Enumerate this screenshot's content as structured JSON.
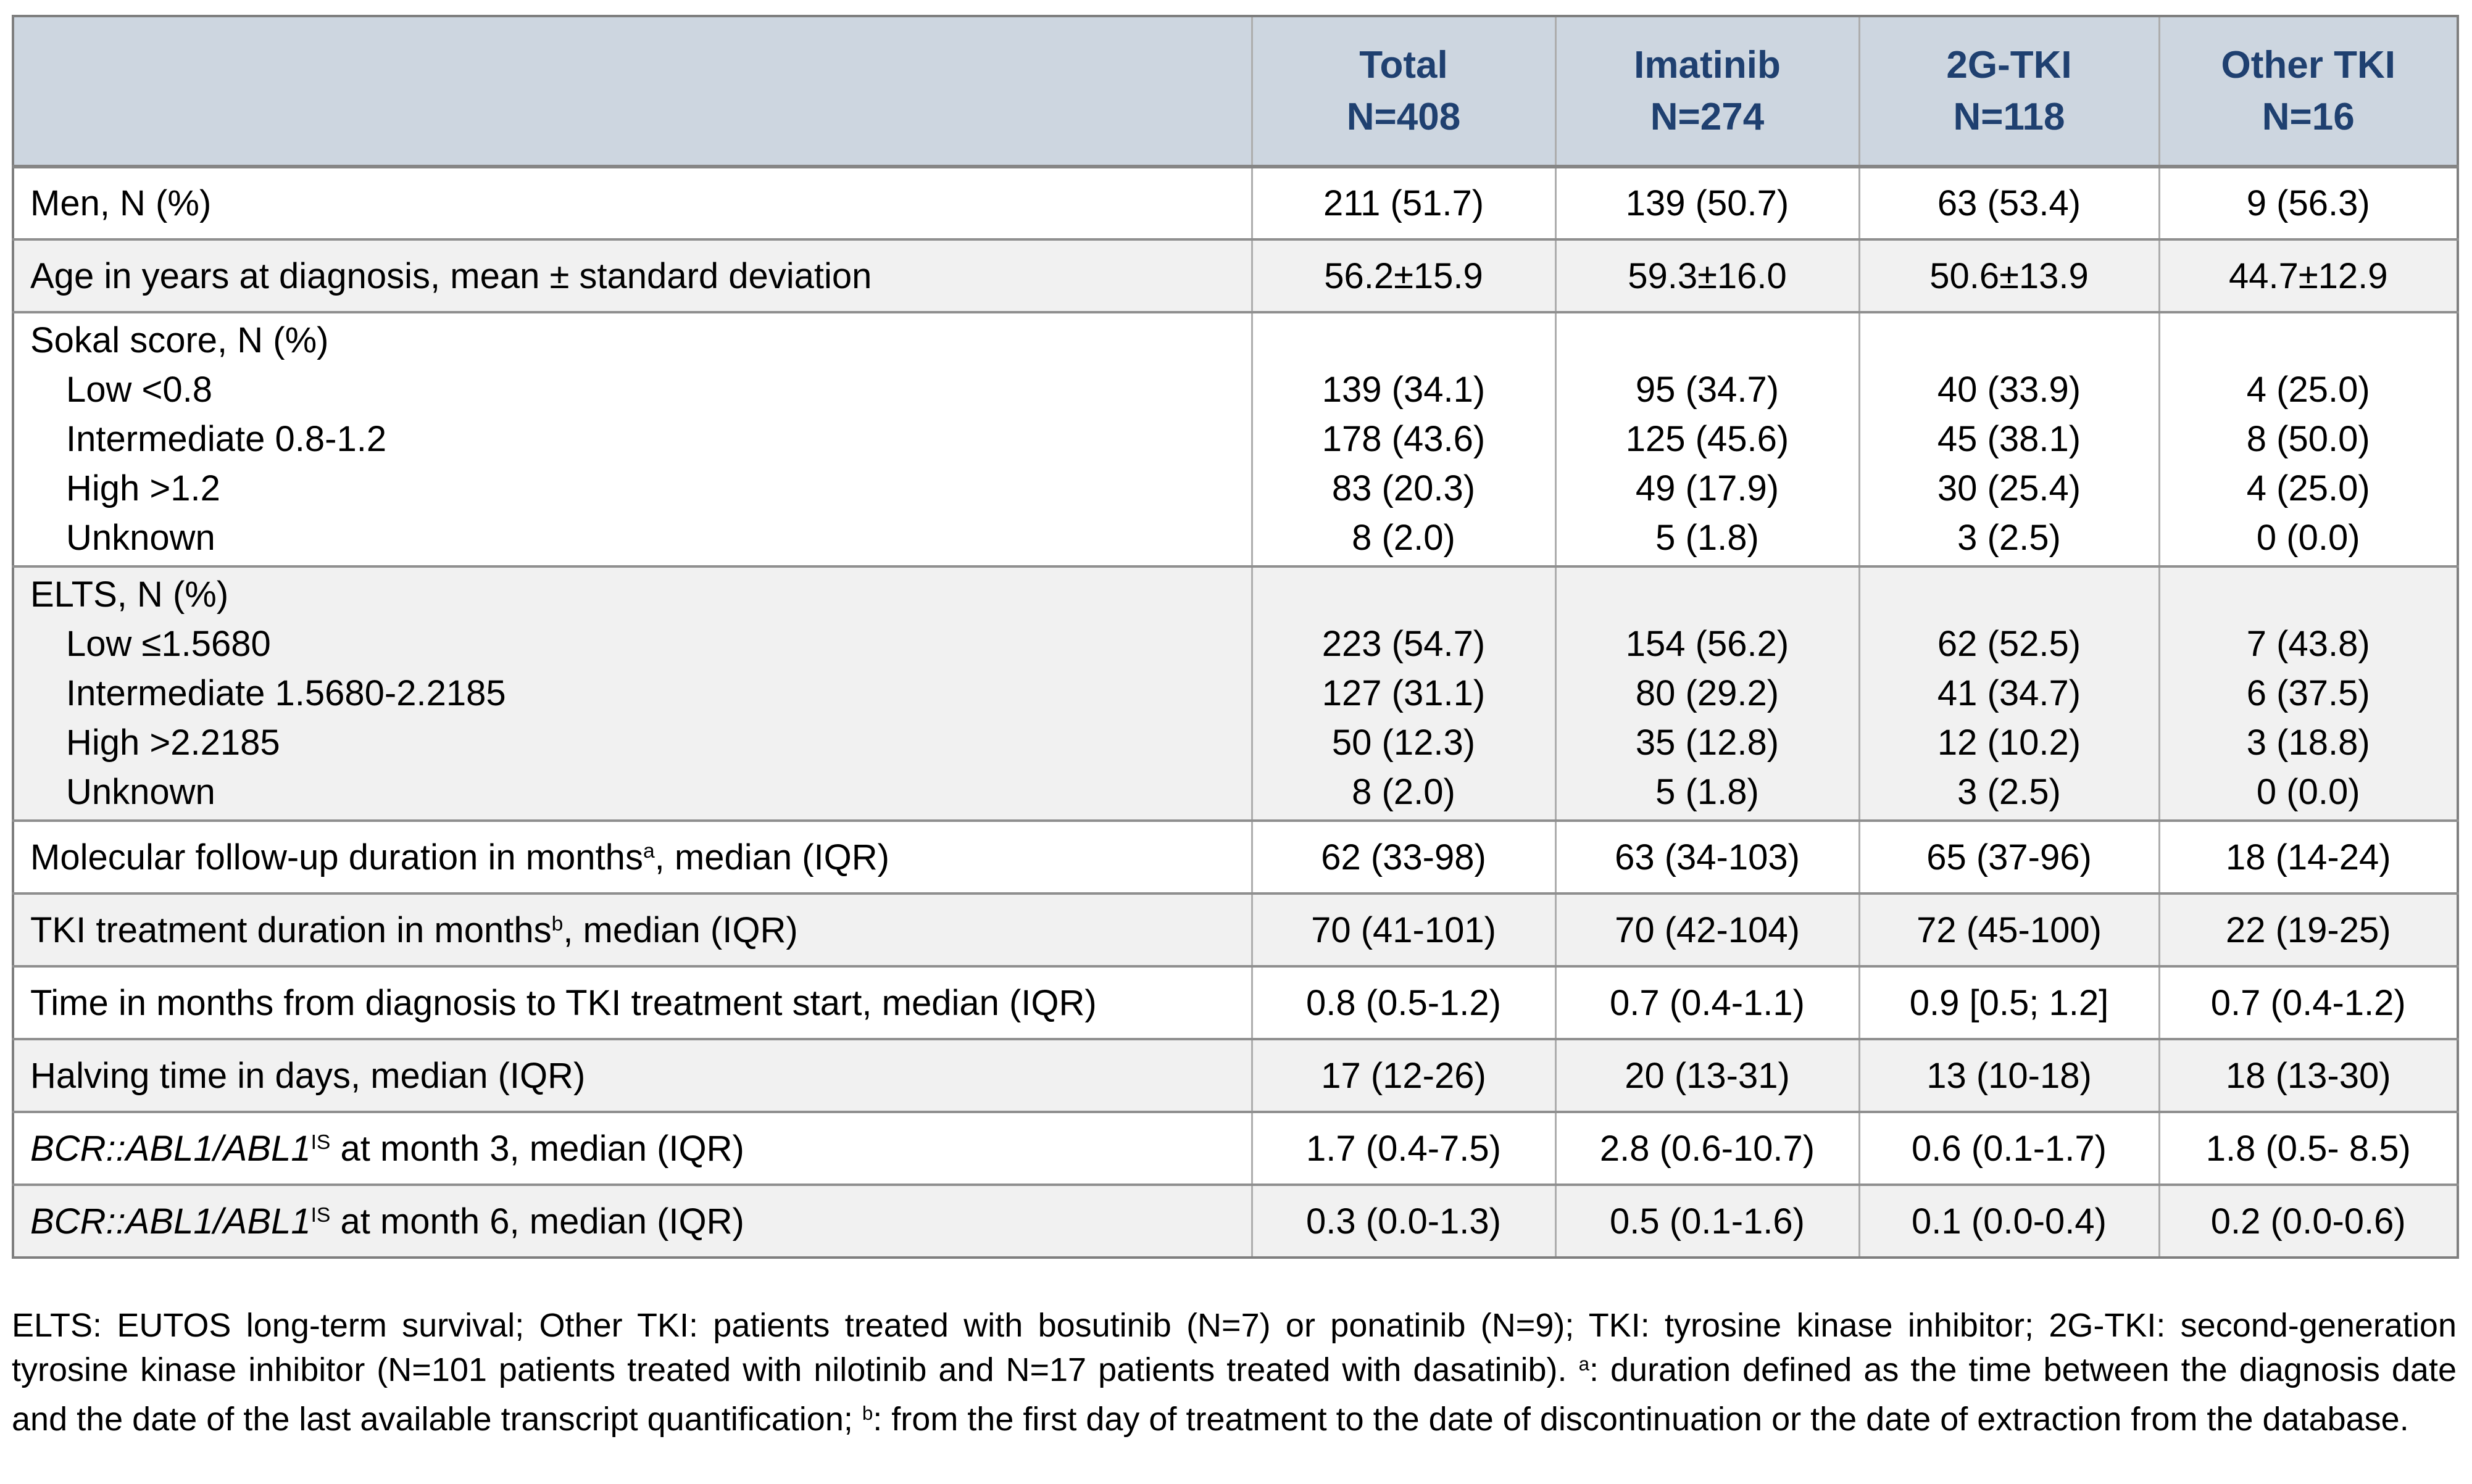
{
  "colors": {
    "header_bg": "#cdd6e0",
    "header_text": "#1f4070",
    "row_alt_bg": "#f1f1f1",
    "border_horizontal": "#8f8f8f",
    "border_vertical": "#adadad",
    "border_outer": "#7f7f7f"
  },
  "table": {
    "columns": [
      {
        "name": "Total",
        "n": "N=408"
      },
      {
        "name": "Imatinib",
        "n": "N=274"
      },
      {
        "name": "2G-TKI",
        "n": "N=118"
      },
      {
        "name": "Other TKI",
        "n": "N=16"
      }
    ],
    "rows": [
      {
        "type": "simple",
        "shade": false,
        "label_parts": [
          {
            "t": "Men, N (%)"
          }
        ],
        "values": [
          "211 (51.7)",
          "139 (50.7)",
          "63 (53.4)",
          "9 (56.3)"
        ]
      },
      {
        "type": "simple",
        "shade": true,
        "label_parts": [
          {
            "t": "Age in years at diagnosis, mean ± standard deviation"
          }
        ],
        "values": [
          "56.2±15.9",
          "59.3±16.0",
          "50.6±13.9",
          "44.7±12.9"
        ]
      },
      {
        "type": "block",
        "shade": false,
        "heading": "Sokal score, N (%)",
        "sub": [
          "Low <0.8",
          "Intermediate 0.8-1.2",
          "High >1.2",
          "Unknown"
        ],
        "values": [
          [
            "139 (34.1)",
            "178 (43.6)",
            "83 (20.3)",
            "8 (2.0)"
          ],
          [
            "95 (34.7)",
            "125 (45.6)",
            "49 (17.9)",
            "5 (1.8)"
          ],
          [
            "40 (33.9)",
            "45 (38.1)",
            "30 (25.4)",
            "3 (2.5)"
          ],
          [
            "4 (25.0)",
            "8 (50.0)",
            "4 (25.0)",
            "0 (0.0)"
          ]
        ]
      },
      {
        "type": "block",
        "shade": true,
        "heading": "ELTS, N (%)",
        "sub": [
          "Low ≤1.5680",
          "Intermediate 1.5680-2.2185",
          "High >2.2185",
          "Unknown"
        ],
        "values": [
          [
            "223 (54.7)",
            "127 (31.1)",
            "50 (12.3)",
            "8 (2.0)"
          ],
          [
            "154 (56.2)",
            "80 (29.2)",
            "35 (12.8)",
            "5 (1.8)"
          ],
          [
            "62 (52.5)",
            "41 (34.7)",
            "12 (10.2)",
            "3 (2.5)"
          ],
          [
            "7 (43.8)",
            "6 (37.5)",
            "3 (18.8)",
            "0 (0.0)"
          ]
        ]
      },
      {
        "type": "simple",
        "shade": false,
        "label_parts": [
          {
            "t": "Molecular follow-up duration in months"
          },
          {
            "t": "a",
            "sup": true
          },
          {
            "t": ", median (IQR)"
          }
        ],
        "values": [
          "62 (33-98)",
          "63 (34-103)",
          "65 (37-96)",
          "18 (14-24)"
        ]
      },
      {
        "type": "simple",
        "shade": true,
        "label_parts": [
          {
            "t": "TKI treatment duration in months"
          },
          {
            "t": "b",
            "sup": true
          },
          {
            "t": ", median (IQR)"
          }
        ],
        "values": [
          "70 (41-101)",
          "70 (42-104)",
          "72 (45-100)",
          "22 (19-25)"
        ]
      },
      {
        "type": "simple",
        "shade": false,
        "label_parts": [
          {
            "t": "Time in months from diagnosis to TKI treatment start, median (IQR)"
          }
        ],
        "values": [
          "0.8 (0.5-1.2)",
          "0.7 (0.4-1.1)",
          "0.9 [0.5; 1.2]",
          "0.7 (0.4-1.2)"
        ]
      },
      {
        "type": "simple",
        "shade": true,
        "label_parts": [
          {
            "t": "Halving time in days, median (IQR)"
          }
        ],
        "values": [
          "17 (12-26)",
          "20 (13-31)",
          "13 (10-18)",
          "18 (13-30)"
        ]
      },
      {
        "type": "simple",
        "shade": false,
        "label_parts": [
          {
            "t": "BCR::ABL1/ABL1",
            "italic": true
          },
          {
            "t": "IS",
            "sup": true
          },
          {
            "t": " at month 3, median (IQR)"
          }
        ],
        "values": [
          "1.7 (0.4-7.5)",
          "2.8 (0.6-10.7)",
          "0.6 (0.1-1.7)",
          "1.8 (0.5- 8.5)"
        ]
      },
      {
        "type": "simple",
        "shade": true,
        "label_parts": [
          {
            "t": "BCR::ABL1/ABL1",
            "italic": true
          },
          {
            "t": "IS",
            "sup": true
          },
          {
            "t": " at month 6, median (IQR)"
          }
        ],
        "values": [
          "0.3 (0.0-1.3)",
          "0.5 (0.1-1.6)",
          "0.1 (0.0-0.4)",
          "0.2 (0.0-0.6)"
        ]
      }
    ]
  },
  "footnote": {
    "parts": [
      {
        "t": "ELTS: EUTOS long-term survival; Other TKI: patients treated with bosutinib (N=7) or ponatinib (N=9); TKI: tyrosine kinase inhibitor; 2G-TKI: second-generation tyrosine kinase inhibitor (N=101 patients treated with nilotinib and N=17 patients treated with dasatinib). "
      },
      {
        "t": "a",
        "sup": true
      },
      {
        "t": ": duration defined as the time between the diagnosis date and the date of the last available transcript quantification; "
      },
      {
        "t": "b",
        "sup": true
      },
      {
        "t": ": from the first day of treatment to the date of discontinuation or the date of extraction from the database."
      }
    ]
  }
}
